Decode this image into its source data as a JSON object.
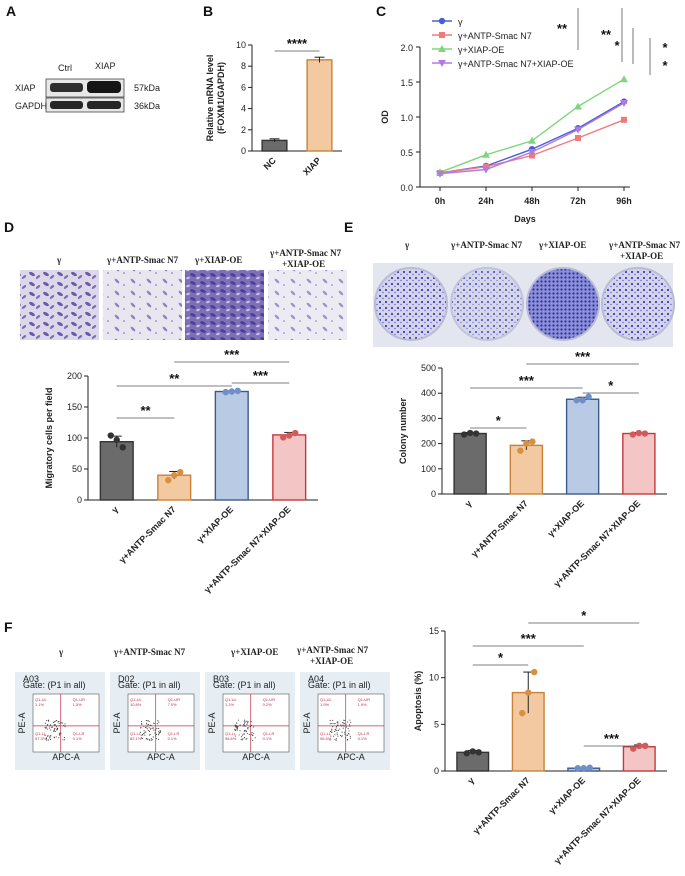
{
  "panels": {
    "A": "A",
    "B": "B",
    "C": "C",
    "D": "D",
    "E": "E",
    "F": "F"
  },
  "blot": {
    "lanes": [
      "Ctrl",
      "XIAP"
    ],
    "rows": [
      {
        "protein": "XIAP",
        "mw": "57kDa"
      },
      {
        "protein": "GAPDH",
        "mw": "36kDa"
      }
    ]
  },
  "groups": [
    "γ",
    "γ+ANTP-Smac N7",
    "γ+XIAP-OE",
    "γ+ANTP-Smac N7+XIAP-OE"
  ],
  "image_titles": [
    "γ",
    "γ+ANTP-Smac N7",
    "γ+XIAP-OE",
    "γ+ANTP-Smac N7",
    "+XIAP-OE"
  ],
  "colors": {
    "gray": "#6b6b6b",
    "orange": "#f2c9a0",
    "blue": "#b9cbe4",
    "red": "#f4c5c5",
    "orange_edge": "#c8833a",
    "blue_edge": "#3c5a8a",
    "red_edge": "#c23a3a",
    "line_blue": "#4a5fd6",
    "line_red": "#f07a7a",
    "line_green": "#7fd67f",
    "line_purple": "#b07ae0"
  },
  "flow": {
    "samples": [
      "A03",
      "D02",
      "B03",
      "A04"
    ],
    "gate": "Gate: (P1 in all)",
    "xaxis": "APC-A",
    "yaxis": "PE-A",
    "quadrants": [
      "Q1-UL",
      "Q1-UR",
      "Q1-LL",
      "Q1-LR"
    ],
    "values": [
      [
        "1.1%",
        "1.5%",
        "97.3%",
        "0.1%"
      ],
      [
        "10.8%",
        "7.0%",
        "82.1%",
        "0.1%"
      ],
      [
        "1.1%",
        "0.2%",
        "98.6%",
        "0.1%"
      ],
      [
        "1.5%",
        "1.9%",
        "96.5%",
        "0.1%"
      ]
    ]
  },
  "chart_data": [
    {
      "id": "B",
      "type": "bar",
      "categories": [
        "NC",
        "XIAP"
      ],
      "values": [
        1.0,
        8.6
      ],
      "errors": [
        0.15,
        0.25
      ],
      "ylabel": "Relative mRNA level\n(FOXM1/GAPDH)",
      "ylim": [
        0,
        10
      ],
      "yticks": [
        0,
        2,
        4,
        6,
        8,
        10
      ],
      "significance": [
        "****"
      ]
    },
    {
      "id": "C",
      "type": "line",
      "x": [
        "0h",
        "24h",
        "48h",
        "72h",
        "96h"
      ],
      "xlabel": "Days",
      "ylabel": "OD",
      "ylim": [
        0,
        2.0
      ],
      "yticks": [
        0.0,
        0.5,
        1.0,
        1.5,
        2.0
      ],
      "series": [
        {
          "name": "γ",
          "values": [
            0.2,
            0.3,
            0.54,
            0.84,
            1.22
          ],
          "marker": "circle"
        },
        {
          "name": "γ+ANTP-Smac N7",
          "values": [
            0.2,
            0.29,
            0.45,
            0.7,
            0.96
          ],
          "marker": "square"
        },
        {
          "name": "γ+XIAP-OE",
          "values": [
            0.21,
            0.46,
            0.66,
            1.15,
            1.54
          ],
          "marker": "triangle"
        },
        {
          "name": "γ+ANTP-Smac N7+XIAP-OE",
          "values": [
            0.19,
            0.25,
            0.5,
            0.82,
            1.2
          ],
          "marker": "invtriangle"
        }
      ],
      "significance": [
        "**",
        "**",
        "*",
        "*",
        "*"
      ]
    },
    {
      "id": "D",
      "type": "bar",
      "categories": [
        "γ",
        "γ+ANTP-Smac N7",
        "γ+XIAP-OE",
        "γ+ANTP-Smac N7+XIAP-OE"
      ],
      "values": [
        94,
        40,
        175,
        105
      ],
      "errors": [
        9,
        6,
        1,
        4
      ],
      "points": [
        [
          104,
          97,
          85
        ],
        [
          32,
          40,
          45
        ],
        [
          174,
          175,
          176
        ],
        [
          101,
          104,
          108
        ]
      ],
      "ylabel": "Migratory cells per field",
      "ylim": [
        0,
        200
      ],
      "yticks": [
        0,
        50,
        100,
        150,
        200
      ],
      "significance": [
        "**",
        "**",
        "***",
        "***"
      ]
    },
    {
      "id": "E",
      "type": "bar",
      "categories": [
        "γ",
        "γ+ANTP-Smac N7",
        "γ+XIAP-OE",
        "γ+ANTP-Smac N7+XIAP-OE"
      ],
      "values": [
        240,
        193,
        376,
        240
      ],
      "errors": [
        4,
        18,
        8,
        4
      ],
      "points": [
        [
          236,
          242,
          240
        ],
        [
          172,
          200,
          208
        ],
        [
          372,
          372,
          386
        ],
        [
          236,
          242,
          240
        ]
      ],
      "ylabel": "Colony number",
      "ylim": [
        0,
        500
      ],
      "yticks": [
        0,
        100,
        200,
        300,
        400,
        500
      ],
      "significance": [
        "*",
        "***",
        "***",
        "*"
      ]
    },
    {
      "id": "F",
      "type": "bar",
      "categories": [
        "γ",
        "γ+ANTP-Smac N7",
        "γ+XIAP-OE",
        "γ+ANTP-Smac N7+XIAP-OE"
      ],
      "values": [
        2.0,
        8.4,
        0.3,
        2.6
      ],
      "errors": [
        0.2,
        2.2,
        0.05,
        0.2
      ],
      "points": [
        [
          1.9,
          2.1,
          2.0
        ],
        [
          6.2,
          8.4,
          10.6
        ],
        [
          0.3,
          0.3,
          0.35
        ],
        [
          2.4,
          2.7,
          2.7
        ]
      ],
      "ylabel": "Apoptosis (%)",
      "ylim": [
        0,
        15
      ],
      "yticks": [
        0,
        5,
        10,
        15
      ],
      "significance": [
        "*",
        "***",
        "*",
        "***"
      ]
    }
  ]
}
